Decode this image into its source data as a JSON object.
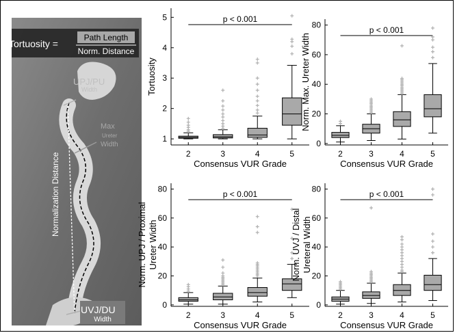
{
  "colors": {
    "box_fill": "#a9a9a9",
    "outlier": "#b0b0b0",
    "axis": "#000000",
    "image_bg": "#7a7a7a",
    "ureter": "#dcdcdc",
    "label_gray": "#b8b8b8"
  },
  "left_image": {
    "formula_left": "Tortuosity =",
    "formula_num": "Path Length",
    "formula_den": "Norm. Distance",
    "upj_label": "UPJ/PU",
    "upj_sub": "Width",
    "max_label": "Max",
    "max_sub1": "Ureter",
    "max_sub2": "Width",
    "norm_label": "Normalization Distance",
    "uvj_label": "UVJ/DU",
    "uvj_sub": "Width"
  },
  "chart_data": [
    {
      "type": "box",
      "ylabel": "Tortuosity",
      "ylabel2": "",
      "xlabel": "Consensus VUR Grade",
      "categories": [
        "2",
        "3",
        "4",
        "5"
      ],
      "ylim": [
        0.8,
        5.3
      ],
      "yticks": [
        1,
        2,
        3,
        4,
        5
      ],
      "annotation": "p < 0.001",
      "boxes": [
        {
          "low": 1.0,
          "q1": 1.02,
          "median": 1.05,
          "q3": 1.09,
          "high": 1.2,
          "outliers": [
            1.25,
            1.3,
            1.38,
            1.45,
            1.55,
            1.67
          ]
        },
        {
          "low": 1.0,
          "q1": 1.03,
          "median": 1.07,
          "q3": 1.14,
          "high": 1.3,
          "outliers": [
            1.35,
            1.42,
            1.5,
            1.6,
            1.72,
            1.82,
            1.95,
            2.08,
            2.25,
            2.6
          ]
        },
        {
          "low": 1.0,
          "q1": 1.05,
          "median": 1.13,
          "q3": 1.35,
          "high": 1.75,
          "outliers": [
            1.85,
            1.95,
            2.1,
            2.25,
            2.4,
            2.6,
            2.8,
            3.0,
            3.5,
            3.62
          ]
        },
        {
          "low": 1.0,
          "q1": 1.45,
          "median": 1.82,
          "q3": 2.35,
          "high": 3.42,
          "outliers": [
            3.8,
            4.05,
            4.2,
            4.28,
            5.05
          ]
        }
      ]
    },
    {
      "type": "box",
      "ylabel": "Norm. Max. Ureter Width",
      "ylabel2": "",
      "xlabel": "Consensus VUR Grade",
      "categories": [
        "2",
        "3",
        "4",
        "5"
      ],
      "ylim": [
        -1,
        84
      ],
      "yticks": [
        0,
        20,
        40,
        60,
        80
      ],
      "annotation": "p < 0.001",
      "boxes": [
        {
          "low": 1,
          "q1": 4,
          "median": 5.5,
          "q3": 7.5,
          "high": 12,
          "outliers": [
            13.5,
            15
          ]
        },
        {
          "low": 2,
          "q1": 7,
          "median": 10,
          "q3": 13,
          "high": 20,
          "outliers": [
            21,
            22,
            23,
            24,
            25,
            26,
            27,
            28,
            29,
            30
          ]
        },
        {
          "low": 3,
          "q1": 11.5,
          "median": 16,
          "q3": 21.5,
          "high": 33,
          "outliers": [
            34,
            35,
            36,
            37,
            38,
            39,
            40,
            41,
            42,
            43,
            44,
            66
          ]
        },
        {
          "low": 7,
          "q1": 18,
          "median": 23.5,
          "q3": 33,
          "high": 54,
          "outliers": [
            58,
            62,
            65,
            70,
            72,
            78
          ]
        }
      ]
    },
    {
      "type": "box",
      "ylabel": "Norm. UPJ / Proximal",
      "ylabel2": "Ureter Width",
      "xlabel": "Consensus VUR Grade",
      "categories": [
        "2",
        "3",
        "4",
        "5"
      ],
      "ylim": [
        -1,
        84
      ],
      "yticks": [
        0,
        20,
        40,
        60,
        80
      ],
      "annotation": "p < 0.001",
      "boxes": [
        {
          "low": 0.5,
          "q1": 2.5,
          "median": 3.5,
          "q3": 5,
          "high": 8.5,
          "outliers": [
            9.5,
            11,
            12.5,
            14
          ]
        },
        {
          "low": 0.5,
          "q1": 3.5,
          "median": 5.5,
          "q3": 8,
          "high": 13,
          "outliers": [
            14,
            15,
            16,
            17,
            18,
            19,
            20,
            22,
            26,
            31
          ]
        },
        {
          "low": 2,
          "q1": 6,
          "median": 8.5,
          "q3": 12,
          "high": 18.5,
          "outliers": [
            20,
            21,
            22,
            23,
            24,
            25,
            26,
            27,
            28,
            29,
            50,
            54,
            61
          ]
        },
        {
          "low": 5,
          "q1": 10,
          "median": 14.5,
          "q3": 18,
          "high": 28,
          "outliers": [
            32,
            36,
            46,
            66
          ]
        }
      ]
    },
    {
      "type": "box",
      "ylabel": "Norm. UVJ / Distal",
      "ylabel2": "Ureteral Width",
      "xlabel": "Consensus VUR Grade",
      "categories": [
        "2",
        "3",
        "4",
        "5"
      ],
      "ylim": [
        -1,
        84
      ],
      "yticks": [
        0,
        20,
        40,
        60,
        80
      ],
      "annotation": "p < 0.001",
      "boxes": [
        {
          "low": 0.5,
          "q1": 2.5,
          "median": 4,
          "q3": 5.5,
          "high": 10,
          "outliers": [
            11,
            12,
            13,
            14,
            15,
            16
          ]
        },
        {
          "low": 1,
          "q1": 4.5,
          "median": 6.5,
          "q3": 9,
          "high": 15,
          "outliers": [
            16,
            17,
            18,
            19,
            20,
            21,
            22,
            23,
            67
          ]
        },
        {
          "low": 2,
          "q1": 6.5,
          "median": 10,
          "q3": 14,
          "high": 22,
          "outliers": [
            23,
            24,
            26,
            28,
            30,
            32,
            34,
            36,
            38,
            40,
            42,
            45,
            47
          ]
        },
        {
          "low": 3,
          "q1": 10,
          "median": 14,
          "q3": 20.5,
          "high": 32,
          "outliers": [
            36,
            40,
            44,
            49,
            76,
            80
          ]
        }
      ]
    }
  ]
}
